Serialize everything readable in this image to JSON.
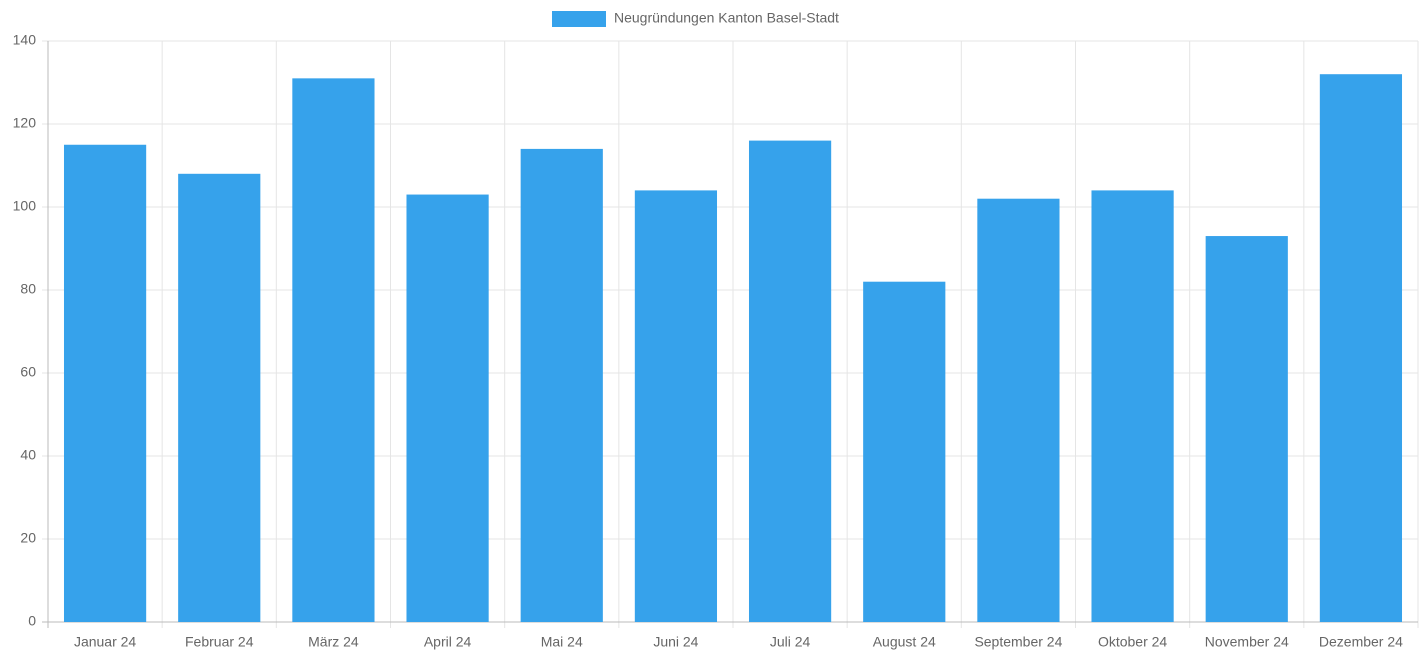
{
  "chart_data": {
    "type": "bar",
    "categories": [
      "Januar 24",
      "Februar 24",
      "März 24",
      "April 24",
      "Mai 24",
      "Juni 24",
      "Juli 24",
      "August 24",
      "September 24",
      "Oktober 24",
      "November 24",
      "Dezember 24"
    ],
    "series": [
      {
        "name": "Neugründungen Kanton Basel-Stadt",
        "color": "#36a2eb",
        "values": [
          115,
          108,
          131,
          103,
          114,
          104,
          116,
          82,
          102,
          104,
          93,
          132
        ]
      }
    ],
    "ylim": [
      0,
      140
    ],
    "yticks": [
      0,
      20,
      40,
      60,
      80,
      100,
      120,
      140
    ],
    "grid": true,
    "legend": "top"
  }
}
